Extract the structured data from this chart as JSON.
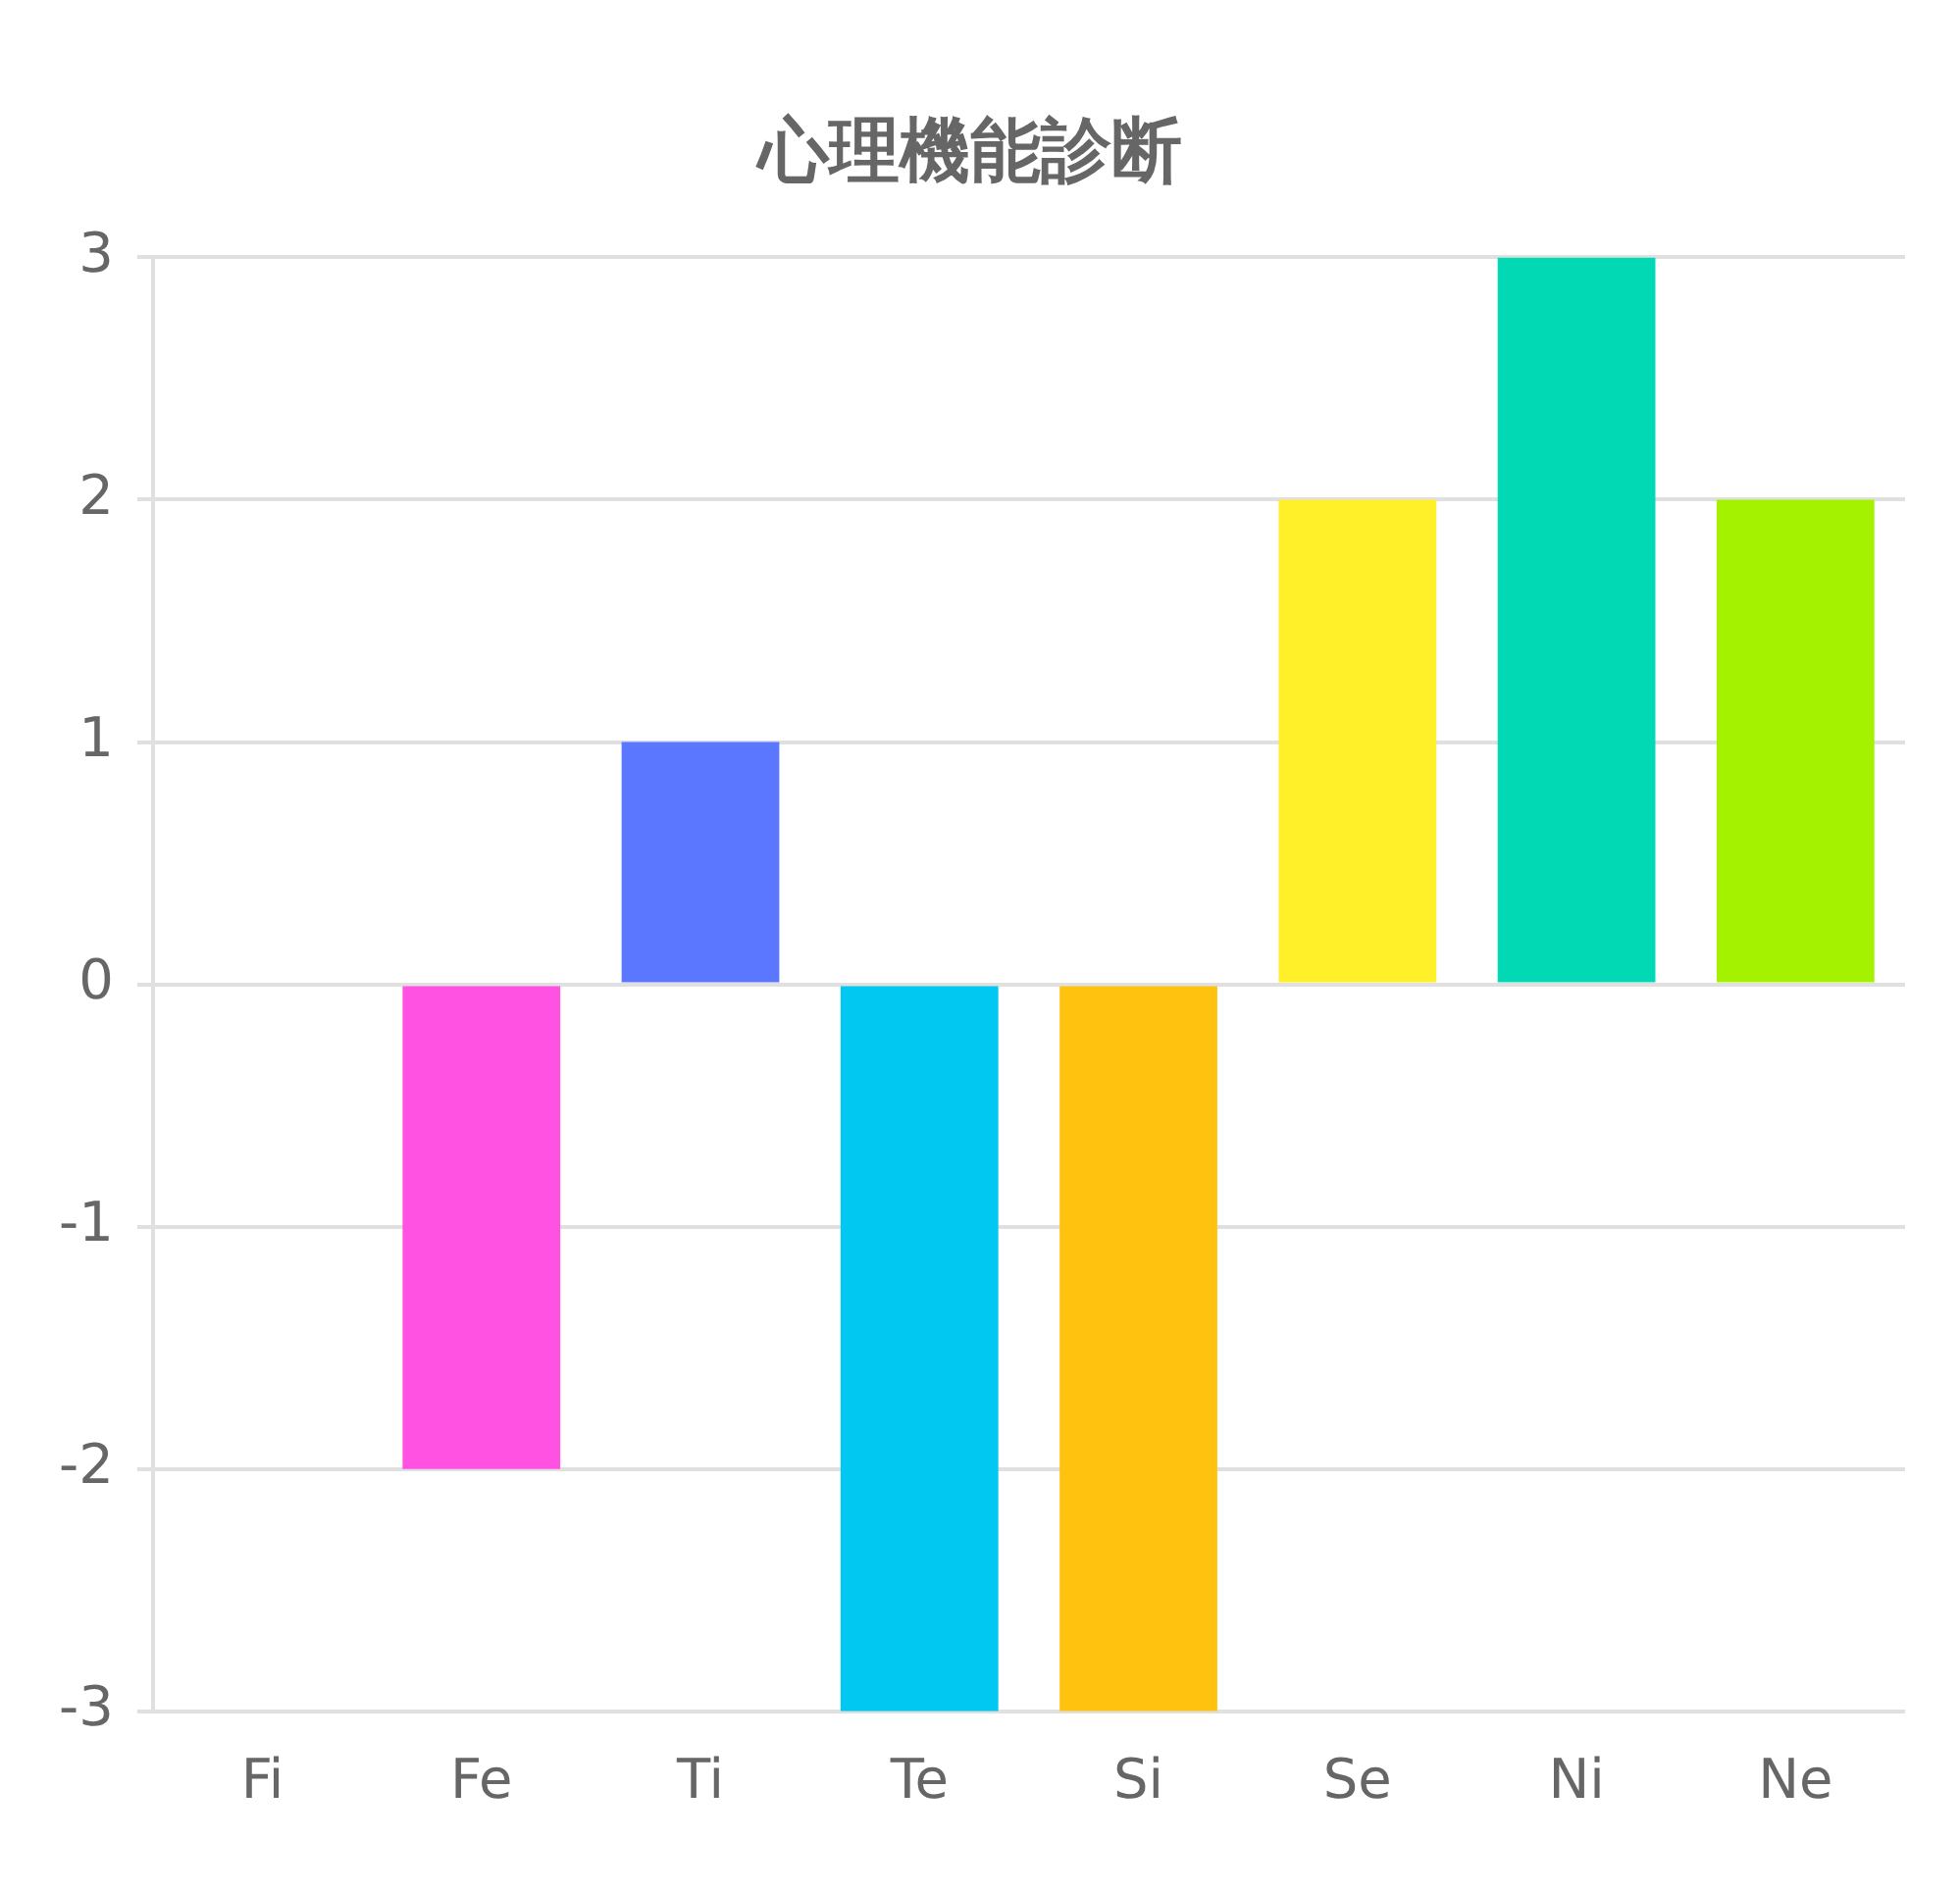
{
  "chart_data": {
    "type": "bar",
    "title": "心理機能診断",
    "categories": [
      "Fi",
      "Fe",
      "Ti",
      "Te",
      "Si",
      "Se",
      "Ni",
      "Ne"
    ],
    "values": [
      0,
      -2,
      1,
      -3,
      -3,
      2,
      3,
      2
    ],
    "colors": [
      "#ff5252",
      "#ff52e3",
      "#5b76ff",
      "#00c8f0",
      "#ffc30f",
      "#fff02a",
      "#00d9b4",
      "#a4f200"
    ],
    "ylim": [
      -3,
      3
    ],
    "yticks": [
      -3,
      -2,
      -1,
      0,
      1,
      2,
      3
    ],
    "grid": "y",
    "legend": false
  }
}
